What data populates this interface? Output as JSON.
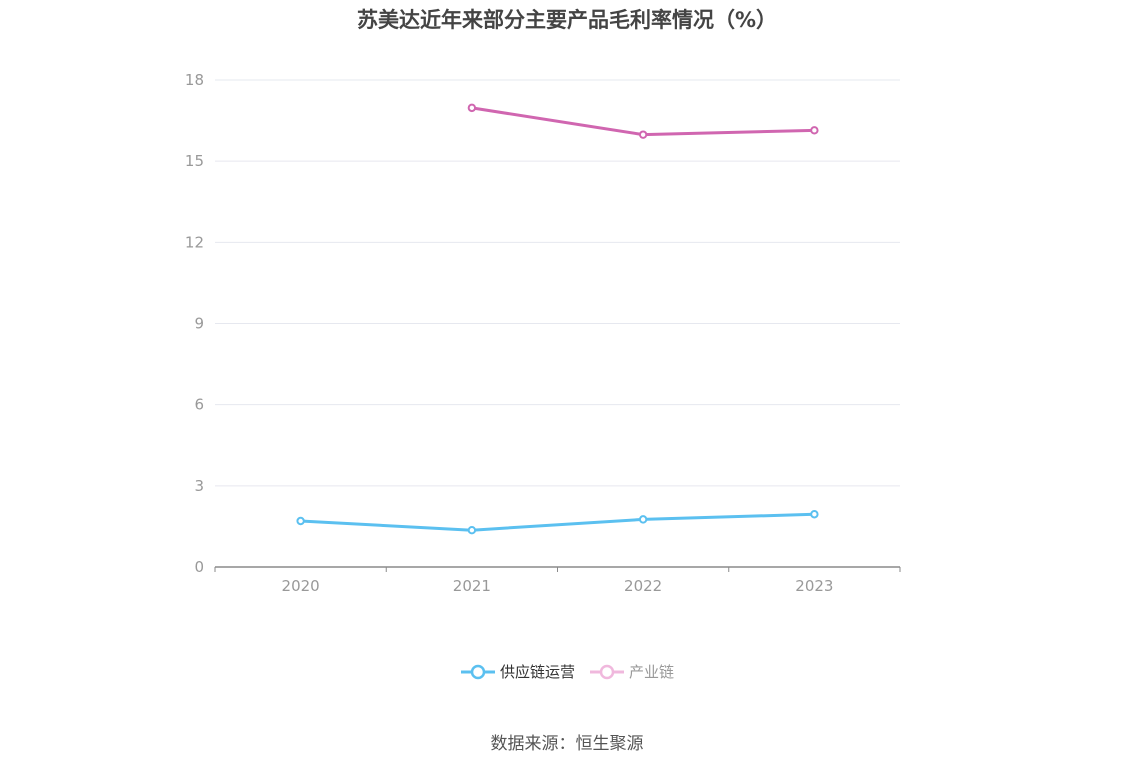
{
  "chart_data": {
    "type": "line",
    "title": "苏美达近年来部分主要产品毛利率情况（%）",
    "categories": [
      "2020",
      "2021",
      "2022",
      "2023"
    ],
    "series": [
      {
        "name": "供应链运营",
        "color": "#5bc0f0",
        "values": [
          1.7,
          1.36,
          1.76,
          1.95
        ]
      },
      {
        "name": "产业链",
        "color": "#d066b0",
        "values": [
          null,
          16.97,
          15.98,
          16.14
        ]
      }
    ],
    "ylim": [
      0,
      18
    ],
    "yticks": [
      0,
      3,
      6,
      9,
      12,
      15,
      18
    ],
    "grid": true,
    "legend_position": "bottom",
    "legend_inactive_color": "#f0b8dd"
  },
  "source": "数据来源：恒生聚源"
}
